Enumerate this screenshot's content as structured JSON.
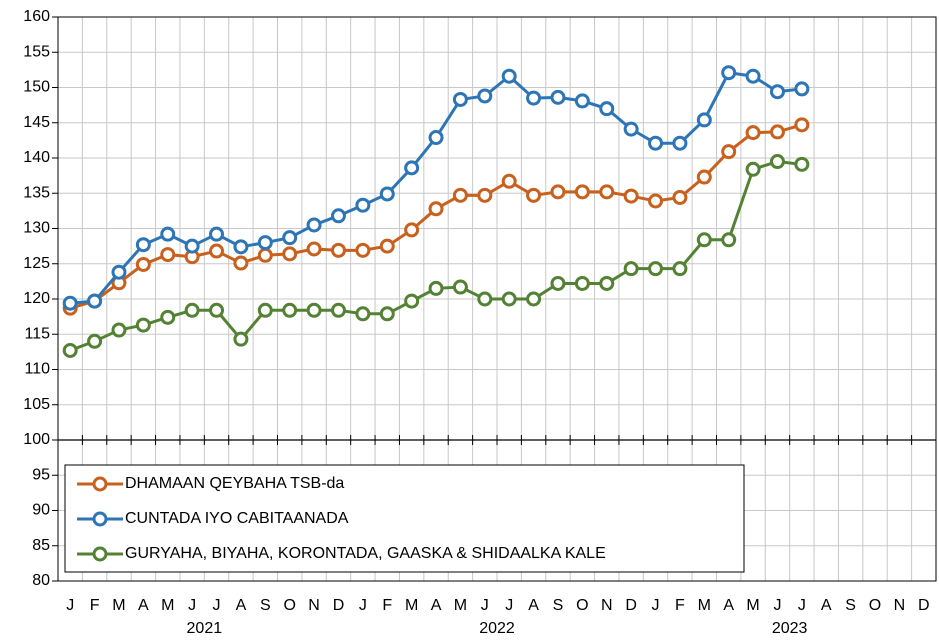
{
  "chart_data": {
    "type": "line",
    "categories": [
      "J",
      "F",
      "M",
      "A",
      "M",
      "J",
      "J",
      "A",
      "S",
      "O",
      "N",
      "D",
      "J",
      "F",
      "M",
      "A",
      "M",
      "J",
      "J",
      "A",
      "S",
      "O",
      "N",
      "D",
      "J",
      "F",
      "M",
      "A",
      "M",
      "J",
      "J",
      "A",
      "S",
      "O",
      "N",
      "D"
    ],
    "year_labels": [
      "2021",
      "2022",
      "2023"
    ],
    "series": [
      {
        "name": "DHAMAAN QEYBAHA TSB-da",
        "color": "#c8601e",
        "values": [
          118.7,
          119.7,
          122.3,
          124.9,
          126.3,
          126,
          126.8,
          125.1,
          126.2,
          126.4,
          127.1,
          126.9,
          126.9,
          127.5,
          129.8,
          132.8,
          134.7,
          134.7,
          136.7,
          134.7,
          135.2,
          135.2,
          135.2,
          134.6,
          133.9,
          134.4,
          137.3,
          140.9,
          143.6,
          143.7,
          144.7,
          null,
          null,
          null,
          null,
          null
        ]
      },
      {
        "name": "CUNTADA IYO CABITAANADA",
        "color": "#2e75b6",
        "values": [
          119.4,
          119.7,
          123.8,
          127.7,
          129.2,
          127.5,
          129.2,
          127.4,
          128,
          128.7,
          130.5,
          131.8,
          133.3,
          134.9,
          138.6,
          142.9,
          148.3,
          148.8,
          151.6,
          148.5,
          148.6,
          148.1,
          147,
          144.1,
          142.1,
          142.1,
          145.4,
          152.1,
          151.6,
          149.4,
          149.8,
          null,
          null,
          null,
          null,
          null
        ]
      },
      {
        "name": "GURYAHA, BIYAHA, KORONTADA, GAASKA & SHIDAALKA KALE",
        "color": "#548235",
        "values": [
          112.7,
          114,
          115.6,
          116.3,
          117.4,
          118.4,
          118.4,
          114.3,
          118.4,
          118.4,
          118.4,
          118.4,
          117.9,
          117.9,
          119.7,
          121.5,
          121.7,
          120,
          120,
          120,
          122.2,
          122.2,
          122.2,
          124.3,
          124.3,
          124.3,
          128.4,
          128.4,
          138.4,
          139.5,
          139.1,
          null,
          null,
          null,
          null,
          null
        ]
      }
    ],
    "ylim": [
      80,
      160
    ],
    "yticks": [
      80,
      85,
      90,
      95,
      100,
      105,
      110,
      115,
      120,
      125,
      130,
      135,
      140,
      145,
      150,
      155,
      160
    ],
    "axis_line_at": 100,
    "grid": true,
    "legend": "lower left"
  }
}
